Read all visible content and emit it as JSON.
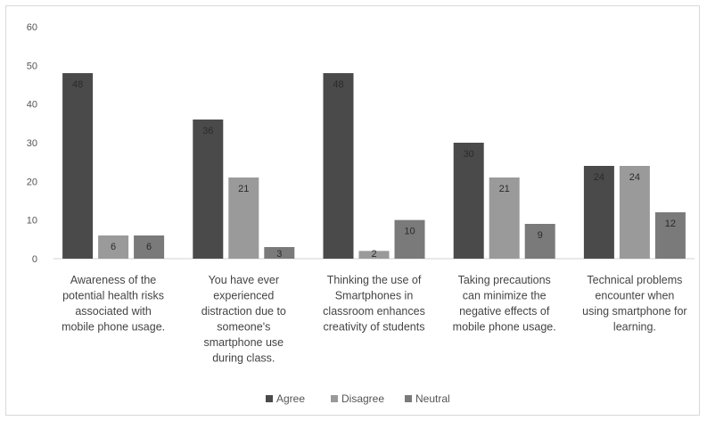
{
  "chart_data": {
    "type": "bar",
    "categories": [
      [
        "Awareness of the",
        "potential health risks",
        "associated with",
        "mobile phone usage."
      ],
      [
        "You have ever",
        "experienced",
        "distraction due to",
        "someone's",
        "smartphone use",
        "during class."
      ],
      [
        "Thinking the use of",
        "Smartphones in",
        "classroom enhances",
        "creativity of students"
      ],
      [
        "Taking precautions",
        "can minimize the",
        "negative effects of",
        "mobile phone usage."
      ],
      [
        "Technical problems",
        "encounter when",
        "using smartphone for",
        "learning."
      ]
    ],
    "series": [
      {
        "name": "Agree",
        "values": [
          48,
          36,
          48,
          30,
          24
        ],
        "color": "#4a4a4a"
      },
      {
        "name": "Disagree",
        "values": [
          6,
          21,
          2,
          21,
          24
        ],
        "color": "#9a9a9a"
      },
      {
        "name": "Neutral",
        "values": [
          6,
          3,
          10,
          9,
          12
        ],
        "color": "#7a7a7a"
      }
    ],
    "ylim": [
      0,
      60
    ],
    "yticks": [
      "0",
      "10",
      "20",
      "30",
      "40",
      "50",
      "60"
    ],
    "grid": false,
    "legend_position": "bottom"
  }
}
